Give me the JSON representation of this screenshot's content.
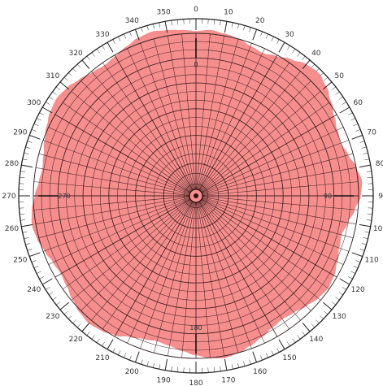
{
  "diagram": {
    "type": "polar-grid",
    "fill_color": "#f47a7a",
    "fill_opacity": 0.85,
    "grid_color": "#2a1010",
    "rim_color": "#222222",
    "radial_spokes": 72,
    "concentric_rings": 18,
    "rim_tick_count": 180,
    "rim_labels": [
      {
        "text": "0",
        "angle": 0
      },
      {
        "text": "10",
        "angle": 10
      },
      {
        "text": "20",
        "angle": 20
      },
      {
        "text": "30",
        "angle": 30
      },
      {
        "text": "40",
        "angle": 40
      },
      {
        "text": "50",
        "angle": 50
      },
      {
        "text": "60",
        "angle": 60
      },
      {
        "text": "70",
        "angle": 70
      },
      {
        "text": "80",
        "angle": 80
      },
      {
        "text": "90",
        "angle": 90
      },
      {
        "text": "100",
        "angle": 100
      },
      {
        "text": "110",
        "angle": 110
      },
      {
        "text": "120",
        "angle": 120
      },
      {
        "text": "130",
        "angle": 130
      },
      {
        "text": "140",
        "angle": 140
      },
      {
        "text": "150",
        "angle": 150
      },
      {
        "text": "160",
        "angle": 160
      },
      {
        "text": "170",
        "angle": 170
      },
      {
        "text": "180",
        "angle": 180
      },
      {
        "text": "190",
        "angle": 190
      },
      {
        "text": "200",
        "angle": 200
      },
      {
        "text": "210",
        "angle": 210
      },
      {
        "text": "220",
        "angle": 220
      },
      {
        "text": "230",
        "angle": 230
      },
      {
        "text": "240",
        "angle": 240
      },
      {
        "text": "250",
        "angle": 250
      },
      {
        "text": "260",
        "angle": 260
      },
      {
        "text": "270",
        "angle": 270
      },
      {
        "text": "280",
        "angle": 280
      },
      {
        "text": "290",
        "angle": 290
      },
      {
        "text": "300",
        "angle": 300
      },
      {
        "text": "310",
        "angle": 310
      },
      {
        "text": "320",
        "angle": 320
      },
      {
        "text": "330",
        "angle": 330
      },
      {
        "text": "340",
        "angle": 340
      },
      {
        "text": "350",
        "angle": 350
      }
    ],
    "inner_markers": [
      {
        "text": "0",
        "angle": 0
      },
      {
        "text": "90",
        "angle": 90
      },
      {
        "text": "180",
        "angle": 180
      },
      {
        "text": "270",
        "angle": 270
      }
    ],
    "fill_profile": [
      0.93,
      0.94,
      0.93,
      0.92,
      0.9,
      0.89,
      0.91,
      0.94,
      0.97,
      0.98,
      0.96,
      0.93,
      0.9,
      0.88,
      0.87,
      0.89,
      0.92,
      0.94,
      0.93,
      0.9,
      0.87,
      0.85,
      0.86,
      0.88,
      0.9,
      0.91,
      0.9,
      0.88,
      0.86,
      0.85,
      0.86,
      0.88,
      0.9,
      0.92,
      0.93,
      0.92,
      0.9,
      0.88,
      0.86,
      0.85,
      0.86,
      0.88,
      0.91,
      0.93,
      0.94,
      0.93,
      0.91,
      0.89,
      0.88,
      0.89,
      0.91,
      0.93,
      0.94,
      0.93,
      0.91,
      0.89,
      0.88,
      0.89,
      0.91,
      0.93,
      0.95,
      0.96,
      0.95,
      0.93,
      0.91,
      0.9,
      0.91,
      0.93,
      0.95,
      0.96,
      0.95,
      0.94
    ]
  }
}
